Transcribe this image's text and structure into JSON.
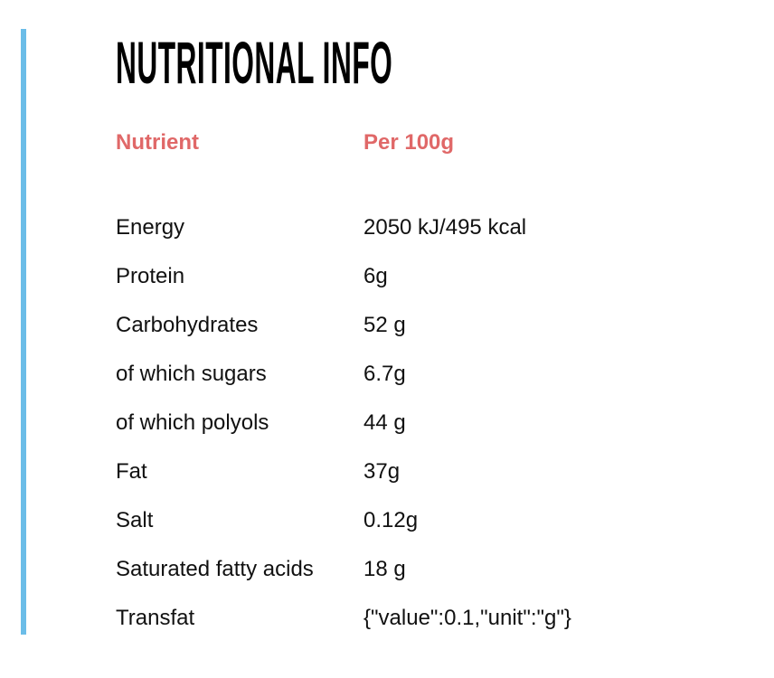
{
  "title": "NUTRITIONAL INFO",
  "accent_color": "#6bbde8",
  "header_color": "#e06868",
  "headers": {
    "nutrient": "Nutrient",
    "per100": "Per 100g"
  },
  "rows": [
    {
      "nutrient": "Energy",
      "value": "2050 kJ/495 kcal"
    },
    {
      "nutrient": "Protein",
      "value": "6g"
    },
    {
      "nutrient": "Carbohydrates",
      "value": "52 g"
    },
    {
      "nutrient": "of which sugars",
      "value": "6.7g"
    },
    {
      "nutrient": "of which polyols",
      "value": "44 g"
    },
    {
      "nutrient": "Fat",
      "value": "37g"
    },
    {
      "nutrient": "Salt",
      "value": "0.12g"
    },
    {
      "nutrient": "Saturated fatty acids",
      "value": "18 g"
    },
    {
      "nutrient": "Transfat",
      "value": "{\"value\":0.1,\"unit\":\"g\"}"
    }
  ]
}
